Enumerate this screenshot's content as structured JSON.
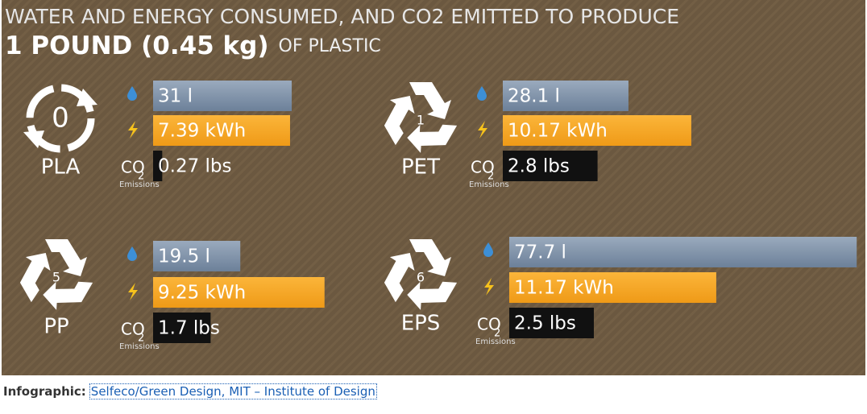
{
  "title_line1": "WATER AND ENERGY CONSUMED, AND CO2 EMITTED TO PRODUCE",
  "title_line2_bold": "1 POUND (0.45 kg)",
  "title_line2_rest": "OF PLASTIC",
  "co2_label": "CO",
  "co2_sub": "2",
  "emissions_label": "Emissions",
  "panels": [
    {
      "code": "0",
      "name": "PLA",
      "water": 31,
      "water_label": "31 l",
      "energy": 7.39,
      "energy_label": "7.39 kWh",
      "co2": 0.27,
      "co2_label": "0.27 lbs"
    },
    {
      "code": "1",
      "name": "PET",
      "water": 28.1,
      "water_label": "28.1 l",
      "energy": 10.17,
      "energy_label": "10.17 kWh",
      "co2": 2.8,
      "co2_label": "2.8 lbs"
    },
    {
      "code": "5",
      "name": "PP",
      "water": 19.5,
      "water_label": "19.5 l",
      "energy": 9.25,
      "energy_label": "9.25 kWh",
      "co2": 1.7,
      "co2_label": "1.7 lbs"
    },
    {
      "code": "6",
      "name": "EPS",
      "water": 77.7,
      "water_label": "77.7 l",
      "energy": 11.17,
      "energy_label": "11.17 kWh",
      "co2": 2.5,
      "co2_label": "2.5 lbs"
    }
  ],
  "caption_prefix": "Infographic:",
  "caption_link": "Selfeco/Green Design, MIT – Institute of Design"
}
